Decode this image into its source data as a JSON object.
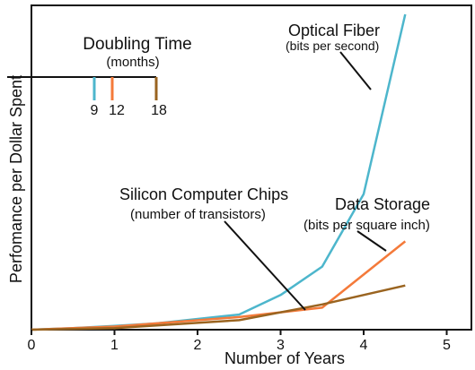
{
  "chart_data": {
    "type": "line",
    "xlabel": "Number of Years",
    "ylabel": "Perfomance per Dollar Spent",
    "xlim": [
      0,
      5
    ],
    "x_ticks": [
      "0",
      "1",
      "2",
      "3",
      "4",
      "5"
    ],
    "y_ticks": [],
    "grid": false,
    "series": [
      {
        "name": "Optical Fiber",
        "sublabel": "(bits per second)",
        "doubling_months": 9,
        "color": "#4db6cc",
        "x": [
          0,
          0.5,
          1.0,
          1.5,
          2.5,
          3.0,
          3.5,
          4.0,
          4.5
        ],
        "y": [
          0,
          0.5,
          1.2,
          2.0,
          4.8,
          11.0,
          20.0,
          43.0,
          100.0
        ]
      },
      {
        "name": "Data Storage",
        "sublabel": "(bits per square inch)",
        "doubling_months": 12,
        "color": "#f47a3a",
        "x": [
          0,
          1.0,
          2.5,
          3.5,
          4.5
        ],
        "y": [
          0,
          1.0,
          4.0,
          7.0,
          28.0
        ]
      },
      {
        "name": "Silicon Computer Chips",
        "sublabel": "(number of transistors)",
        "doubling_months": 18,
        "color": "#9a6420",
        "x": [
          0,
          1.0,
          2.5,
          3.5,
          4.5
        ],
        "y": [
          0,
          0.5,
          3.0,
          8.0,
          14.0
        ]
      }
    ],
    "legend": {
      "title": "Doubling Time",
      "subtitle": "(months)",
      "placement": "top-left",
      "entries": [
        {
          "label": "9",
          "color": "#4db6cc"
        },
        {
          "label": "12",
          "color": "#f47a3a"
        },
        {
          "label": "18",
          "color": "#9a6420"
        }
      ]
    }
  }
}
